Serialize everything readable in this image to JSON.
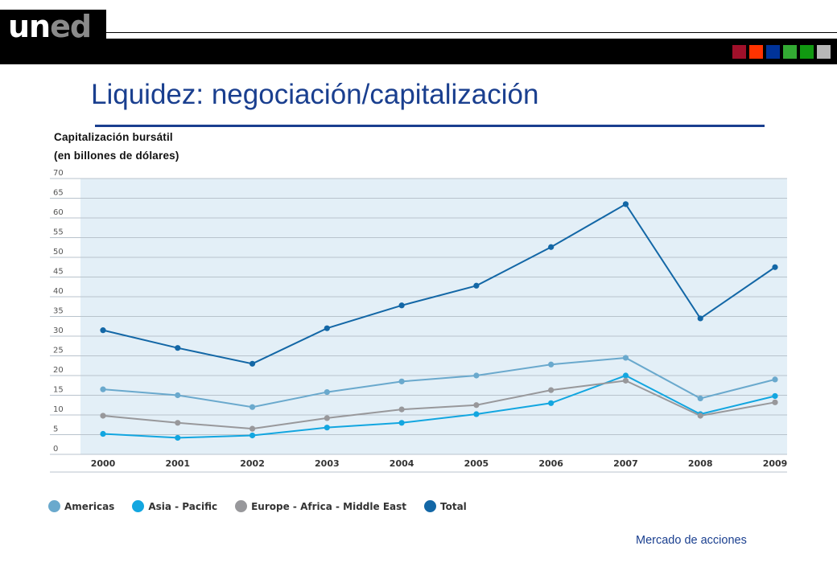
{
  "header": {
    "logo_part1": "un",
    "logo_part2": "ed",
    "squares": [
      {
        "name": "square-crimson",
        "color": "#a0102a"
      },
      {
        "name": "square-red",
        "color": "#ff3300"
      },
      {
        "name": "square-blue",
        "color": "#003399"
      },
      {
        "name": "square-green",
        "color": "#33aa33"
      },
      {
        "name": "square-dark-green",
        "color": "#119911"
      },
      {
        "name": "square-grey",
        "color": "#b7b7b7"
      }
    ]
  },
  "slide": {
    "title": "Liquidez: negociación/capitalización",
    "subtitle_line1": "Capitalización bursátil",
    "subtitle_line2": "(en billones de dólares)",
    "footer": "Mercado de acciones"
  },
  "chart_data": {
    "type": "line",
    "title": "",
    "xlabel": "",
    "ylabel": "",
    "x": [
      "2000",
      "2001",
      "2002",
      "2003",
      "2004",
      "2005",
      "2006",
      "2007",
      "2008",
      "2009"
    ],
    "ylim": [
      0,
      70
    ],
    "yticks": [
      0,
      5,
      10,
      15,
      20,
      25,
      30,
      35,
      40,
      45,
      50,
      55,
      60,
      65,
      70
    ],
    "grid": true,
    "legend_position": "bottom",
    "series": [
      {
        "name": "Americas",
        "color": "#6aa9cd",
        "values": [
          16.5,
          15,
          12,
          15.8,
          18.5,
          20,
          22.8,
          24.5,
          14.2,
          19
        ]
      },
      {
        "name": "Asia - Pacific",
        "color": "#12a6e0",
        "values": [
          5.2,
          4.2,
          4.8,
          6.8,
          8,
          10.2,
          13,
          20,
          10.2,
          14.8
        ]
      },
      {
        "name": "Europe - Africa - Middle East",
        "color": "#98989b",
        "values": [
          9.8,
          8,
          6.5,
          9.2,
          11.4,
          12.5,
          16.3,
          18.7,
          9.8,
          13.2
        ]
      },
      {
        "name": "Total",
        "color": "#1367a6",
        "values": [
          31.5,
          27,
          23,
          32,
          37.8,
          42.8,
          52.6,
          63.5,
          34.5,
          47.5
        ]
      }
    ]
  }
}
